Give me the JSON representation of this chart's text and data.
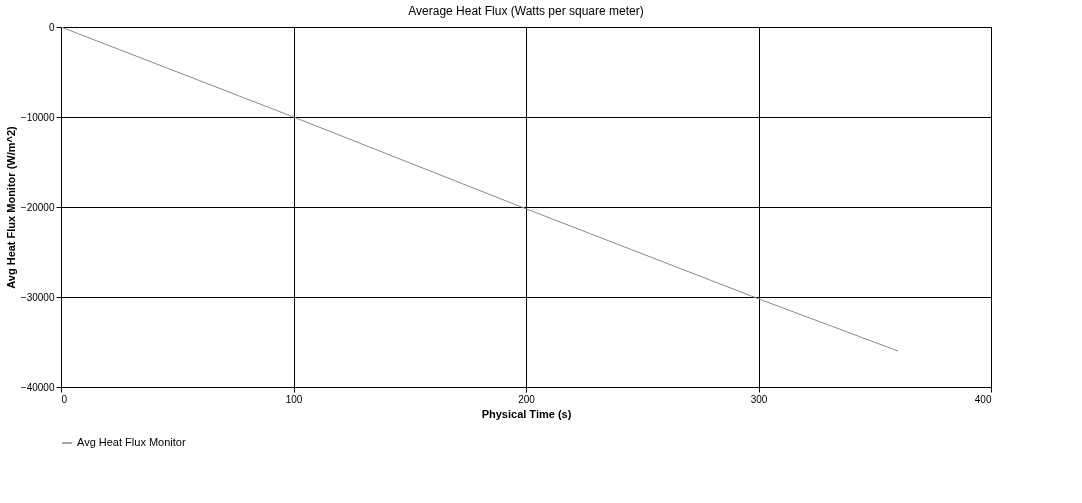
{
  "chart_data": {
    "type": "line",
    "title": "Average Heat Flux (Watts per square meter)",
    "xlabel": "Physical Time (s)",
    "ylabel": "Avg Heat Flux Monitor (W/m^2)",
    "series": [
      {
        "name": "Avg Heat Flux Monitor",
        "color": "#888888",
        "x": [
          0,
          100,
          200,
          300,
          360
        ],
        "values": [
          0,
          -10000,
          -20200,
          -30200,
          -36000
        ]
      }
    ],
    "xlim": [
      0,
      400
    ],
    "xticks": [
      0,
      100,
      200,
      300,
      400
    ],
    "ylim": [
      -40000,
      0
    ],
    "yticks": [
      -40000,
      -30000,
      -20000,
      -10000,
      0
    ],
    "grid": true,
    "legend": "bottom",
    "marker": "none",
    "line_style": "solid"
  }
}
